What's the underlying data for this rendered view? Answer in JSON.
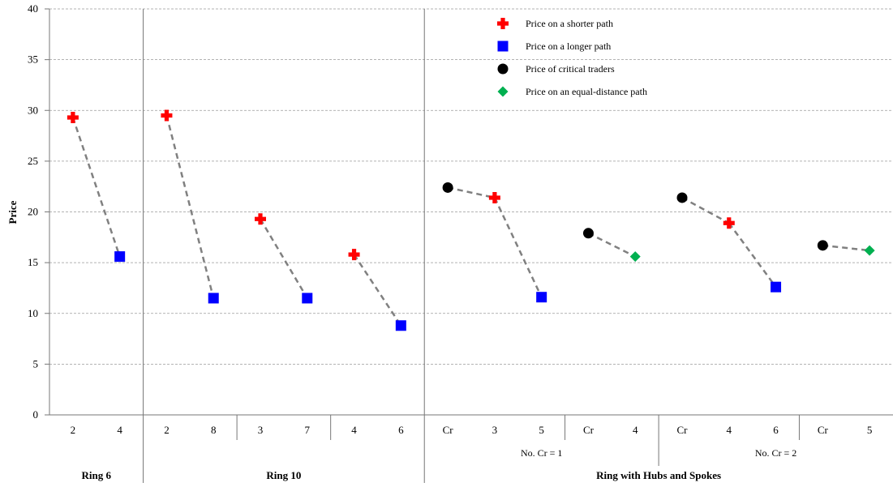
{
  "chart_data": {
    "type": "scatter",
    "title": "",
    "xlabel": "",
    "ylabel": "Price",
    "ylim": [
      0,
      40
    ],
    "y_ticks": [
      0,
      5,
      10,
      15,
      20,
      25,
      30,
      35,
      40
    ],
    "grid": "horizontal dashed",
    "legend_position": "top-right",
    "categories": [
      "2",
      "4",
      "2",
      "8",
      "3",
      "7",
      "4",
      "6",
      "Cr",
      "3",
      "5",
      "Cr",
      "4",
      "Cr",
      "4",
      "6",
      "Cr",
      "5"
    ],
    "groups": [
      {
        "label": "Ring 6",
        "from": 0,
        "to": 1
      },
      {
        "label": "Ring 10",
        "from": 2,
        "to": 7
      },
      {
        "label": "Ring with Hubs and Spokes",
        "from": 8,
        "to": 17
      }
    ],
    "subgroups": [
      {
        "label": "No. Cr = 1",
        "from": 8,
        "to": 12
      },
      {
        "label": "No. Cr = 2",
        "from": 13,
        "to": 17
      }
    ],
    "series": [
      {
        "name": "Price on a shorter path",
        "marker": "cross",
        "color": "#ff0000",
        "points": [
          [
            0,
            29.3
          ],
          [
            2,
            29.5
          ],
          [
            4,
            19.3
          ],
          [
            6,
            15.8
          ],
          [
            9,
            21.4
          ],
          [
            14,
            18.9
          ]
        ]
      },
      {
        "name": "Price on a longer path",
        "marker": "square",
        "color": "#0000ff",
        "points": [
          [
            1,
            15.6
          ],
          [
            3,
            11.5
          ],
          [
            5,
            11.5
          ],
          [
            7,
            8.8
          ],
          [
            10,
            11.6
          ],
          [
            15,
            12.6
          ]
        ]
      },
      {
        "name": "Price of critical traders",
        "marker": "circle",
        "color": "#000000",
        "points": [
          [
            8,
            22.4
          ],
          [
            11,
            17.9
          ],
          [
            13,
            21.4
          ],
          [
            16,
            16.7
          ]
        ]
      },
      {
        "name": "Price on an equal-distance path",
        "marker": "diamond",
        "color": "#00b050",
        "points": [
          [
            12,
            15.6
          ],
          [
            17,
            16.2
          ]
        ]
      }
    ],
    "connectors": [
      [
        0,
        1
      ],
      [
        2,
        3
      ],
      [
        4,
        5
      ],
      [
        6,
        7
      ],
      [
        8,
        9
      ],
      [
        9,
        10
      ],
      [
        11,
        12
      ],
      [
        13,
        14
      ],
      [
        14,
        15
      ],
      [
        16,
        17
      ]
    ]
  }
}
